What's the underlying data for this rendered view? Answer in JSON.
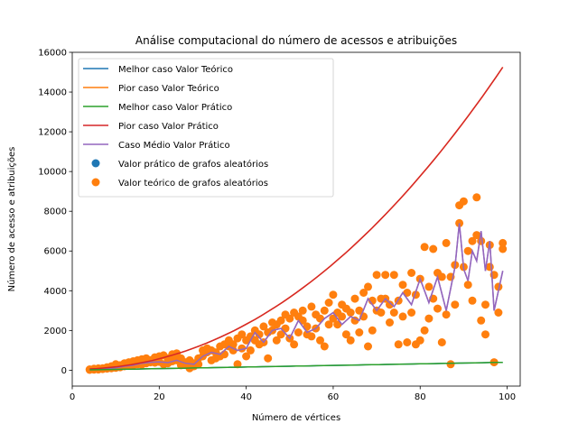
{
  "chart_data": {
    "type": "line",
    "title": "Análise computacional do número de acessos e atribuições",
    "xlabel": "Número de vértices",
    "ylabel": "Número de acesso e atribuições",
    "xlim": [
      0,
      103
    ],
    "ylim": [
      -800,
      16000
    ],
    "xticks": [
      0,
      20,
      40,
      60,
      80,
      100
    ],
    "yticks": [
      0,
      2000,
      4000,
      6000,
      8000,
      10000,
      12000,
      14000,
      16000
    ],
    "xtick_labels": [
      "0",
      "20",
      "40",
      "60",
      "80",
      "100"
    ],
    "ytick_labels": [
      "0",
      "2000",
      "4000",
      "6000",
      "8000",
      "10000",
      "12000",
      "14000",
      "16000"
    ],
    "grid": false,
    "legend_position": "top-left",
    "series": [
      {
        "name": "Melhor caso Valor Teórico",
        "kind": "line",
        "color": "#1f77b4",
        "x": [
          4,
          99
        ],
        "y": [
          16,
          396
        ]
      },
      {
        "name": "Pior caso Valor Teórico",
        "kind": "line",
        "color": "#ff7f0e",
        "x": [
          4,
          99
        ],
        "y": [
          64,
          15250
        ]
      },
      {
        "name": "Melhor caso Valor Prático",
        "kind": "line",
        "color": "#2ca02c",
        "x": [
          4,
          99
        ],
        "y": [
          16,
          396
        ]
      },
      {
        "name": "Pior caso Valor Prático",
        "kind": "line",
        "color": "#d62728",
        "x": [
          4,
          99
        ],
        "y": [
          64,
          15250
        ]
      },
      {
        "name": "Caso Médio Valor Prático",
        "kind": "line",
        "color": "#9467bd",
        "x": [
          4,
          6,
          8,
          10,
          12,
          14,
          16,
          18,
          20,
          22,
          24,
          26,
          28,
          30,
          32,
          34,
          36,
          38,
          40,
          42,
          44,
          46,
          48,
          50,
          52,
          54,
          56,
          58,
          60,
          62,
          64,
          66,
          68,
          70,
          72,
          74,
          76,
          78,
          80,
          82,
          84,
          86,
          88,
          89,
          90,
          91,
          92,
          93,
          94,
          95,
          96,
          97,
          98,
          99
        ],
        "y": [
          20,
          50,
          70,
          120,
          200,
          250,
          350,
          400,
          420,
          380,
          500,
          350,
          300,
          700,
          900,
          800,
          1200,
          1000,
          1100,
          1900,
          1400,
          2000,
          2100,
          1600,
          2500,
          1900,
          2100,
          2600,
          2900,
          2300,
          2700,
          2500,
          3600,
          3000,
          3600,
          3200,
          3900,
          3300,
          4600,
          3400,
          4700,
          3000,
          5200,
          7400,
          5100,
          4500,
          6000,
          5500,
          7000,
          5000,
          6500,
          3000,
          4000,
          5000
        ]
      }
    ],
    "scatter": [
      {
        "name": "Valor prático de grafos aleatórios",
        "color": "#1f77b4"
      },
      {
        "name": "Valor teórico de grafos aleatórios",
        "color": "#ff7f0e",
        "points": [
          [
            4,
            16
          ],
          [
            4,
            40
          ],
          [
            5,
            30
          ],
          [
            5,
            70
          ],
          [
            6,
            36
          ],
          [
            6,
            90
          ],
          [
            7,
            60
          ],
          [
            7,
            100
          ],
          [
            8,
            80
          ],
          [
            8,
            150
          ],
          [
            9,
            100
          ],
          [
            9,
            200
          ],
          [
            10,
            120
          ],
          [
            10,
            300
          ],
          [
            11,
            150
          ],
          [
            11,
            250
          ],
          [
            12,
            200
          ],
          [
            12,
            350
          ],
          [
            13,
            220
          ],
          [
            13,
            400
          ],
          [
            14,
            250
          ],
          [
            14,
            450
          ],
          [
            15,
            300
          ],
          [
            15,
            500
          ],
          [
            16,
            280
          ],
          [
            16,
            550
          ],
          [
            17,
            350
          ],
          [
            17,
            600
          ],
          [
            18,
            400
          ],
          [
            18,
            500
          ],
          [
            19,
            380
          ],
          [
            19,
            650
          ],
          [
            20,
            420
          ],
          [
            20,
            700
          ],
          [
            21,
            300
          ],
          [
            21,
            750
          ],
          [
            22,
            350
          ],
          [
            22,
            600
          ],
          [
            23,
            450
          ],
          [
            23,
            800
          ],
          [
            24,
            500
          ],
          [
            24,
            850
          ],
          [
            25,
            250
          ],
          [
            25,
            600
          ],
          [
            26,
            300
          ],
          [
            26,
            400
          ],
          [
            27,
            100
          ],
          [
            27,
            500
          ],
          [
            28,
            200
          ],
          [
            28,
            350
          ],
          [
            29,
            300
          ],
          [
            29,
            600
          ],
          [
            30,
            700
          ],
          [
            30,
            1000
          ],
          [
            31,
            900
          ],
          [
            31,
            1100
          ],
          [
            32,
            500
          ],
          [
            32,
            1000
          ],
          [
            33,
            600
          ],
          [
            33,
            900
          ],
          [
            34,
            700
          ],
          [
            34,
            1200
          ],
          [
            35,
            800
          ],
          [
            35,
            1300
          ],
          [
            36,
            1200
          ],
          [
            36,
            1500
          ],
          [
            37,
            1000
          ],
          [
            37,
            1300
          ],
          [
            38,
            300
          ],
          [
            38,
            1600
          ],
          [
            39,
            1100
          ],
          [
            39,
            1800
          ],
          [
            40,
            700
          ],
          [
            40,
            1500
          ],
          [
            41,
            1000
          ],
          [
            41,
            1700
          ],
          [
            42,
            1500
          ],
          [
            42,
            2000
          ],
          [
            43,
            1300
          ],
          [
            43,
            1800
          ],
          [
            44,
            1400
          ],
          [
            44,
            2200
          ],
          [
            45,
            600
          ],
          [
            45,
            1900
          ],
          [
            46,
            2000
          ],
          [
            46,
            2400
          ],
          [
            47,
            1500
          ],
          [
            47,
            2300
          ],
          [
            48,
            1800
          ],
          [
            48,
            2500
          ],
          [
            49,
            2100
          ],
          [
            49,
            2800
          ],
          [
            50,
            1600
          ],
          [
            50,
            2600
          ],
          [
            51,
            1300
          ],
          [
            51,
            2900
          ],
          [
            52,
            1900
          ],
          [
            52,
            2700
          ],
          [
            53,
            2500
          ],
          [
            53,
            3000
          ],
          [
            54,
            1800
          ],
          [
            54,
            2200
          ],
          [
            55,
            1700
          ],
          [
            55,
            3200
          ],
          [
            56,
            2100
          ],
          [
            56,
            2800
          ],
          [
            57,
            1500
          ],
          [
            57,
            2600
          ],
          [
            58,
            1200
          ],
          [
            58,
            3000
          ],
          [
            59,
            2300
          ],
          [
            59,
            3400
          ],
          [
            60,
            2600
          ],
          [
            60,
            3800
          ],
          [
            61,
            2300
          ],
          [
            61,
            2900
          ],
          [
            62,
            2700
          ],
          [
            62,
            3300
          ],
          [
            63,
            1800
          ],
          [
            63,
            3100
          ],
          [
            64,
            1500
          ],
          [
            64,
            2900
          ],
          [
            65,
            2500
          ],
          [
            65,
            3600
          ],
          [
            66,
            1900
          ],
          [
            66,
            3000
          ],
          [
            67,
            2700
          ],
          [
            67,
            3900
          ],
          [
            68,
            1200
          ],
          [
            68,
            4200
          ],
          [
            69,
            2000
          ],
          [
            69,
            3500
          ],
          [
            70,
            3000
          ],
          [
            70,
            4800
          ],
          [
            71,
            2900
          ],
          [
            71,
            3600
          ],
          [
            72,
            3600
          ],
          [
            72,
            4800
          ],
          [
            73,
            2400
          ],
          [
            73,
            3300
          ],
          [
            74,
            2900
          ],
          [
            74,
            4800
          ],
          [
            75,
            1300
          ],
          [
            75,
            3500
          ],
          [
            76,
            2700
          ],
          [
            76,
            4300
          ],
          [
            77,
            1400
          ],
          [
            77,
            3900
          ],
          [
            78,
            2900
          ],
          [
            78,
            4900
          ],
          [
            79,
            1300
          ],
          [
            79,
            3800
          ],
          [
            80,
            1500
          ],
          [
            80,
            4600
          ],
          [
            81,
            2000
          ],
          [
            81,
            6200
          ],
          [
            82,
            2600
          ],
          [
            82,
            4200
          ],
          [
            83,
            3600
          ],
          [
            83,
            6100
          ],
          [
            84,
            3100
          ],
          [
            84,
            4900
          ],
          [
            85,
            1400
          ],
          [
            85,
            4700
          ],
          [
            86,
            2800
          ],
          [
            86,
            6400
          ],
          [
            87,
            300
          ],
          [
            87,
            4700
          ],
          [
            88,
            3300
          ],
          [
            88,
            5300
          ],
          [
            89,
            7400
          ],
          [
            89,
            8300
          ],
          [
            90,
            8500
          ],
          [
            90,
            5200
          ],
          [
            91,
            4300
          ],
          [
            91,
            6000
          ],
          [
            92,
            6500
          ],
          [
            92,
            3500
          ],
          [
            93,
            8700
          ],
          [
            93,
            6800
          ],
          [
            94,
            2500
          ],
          [
            94,
            6500
          ],
          [
            95,
            1800
          ],
          [
            95,
            3300
          ],
          [
            96,
            5200
          ],
          [
            96,
            6300
          ],
          [
            97,
            4800
          ],
          [
            97,
            400
          ],
          [
            98,
            4200
          ],
          [
            98,
            2900
          ],
          [
            99,
            6100
          ],
          [
            99,
            6400
          ]
        ]
      }
    ]
  }
}
